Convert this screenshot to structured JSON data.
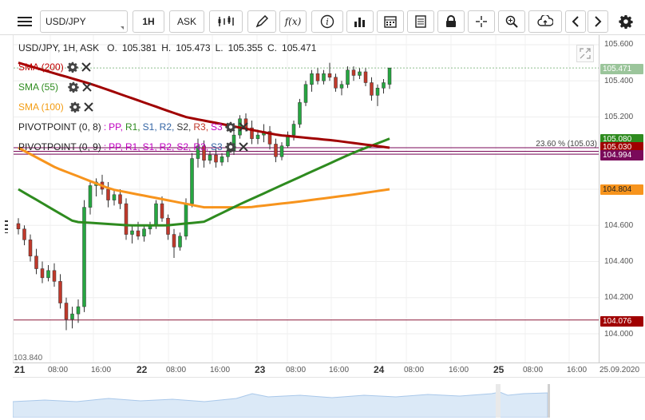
{
  "toolbar": {
    "symbol": "USD/JPY",
    "timeframe": "1H",
    "price_type": "ASK",
    "fx_label": "f(x)"
  },
  "ohlc_line": {
    "symbol_info": "USD/JPY, 1H, ASK",
    "open_label": "O.",
    "open": "105.381",
    "high_label": "H.",
    "high": "105.473",
    "low_label": "L.",
    "low": "105.355",
    "close_label": "C.",
    "close": "105.471"
  },
  "indicators": [
    {
      "label": "SMA (200)",
      "color": "#c00000"
    },
    {
      "label": "SMA (55)",
      "color": "#2e8b1f"
    },
    {
      "label": "SMA (100)",
      "color": "#f39c12"
    }
  ],
  "pivot1": {
    "name": "PIVOTPOINT (0, 8)",
    "sep": " : ",
    "pp": "PP,",
    "r1": "R1,",
    "s1": "S1,",
    "r2": "R2,",
    "s2": "S2,",
    "r3": "R3,",
    "s3": "S3"
  },
  "pivot2": {
    "name": "PIVOTPOINT (0, 9)",
    "sep": " : ",
    "pp": "PP,",
    "r1": "R1,",
    "s1": "S1,",
    "r2": "R2,",
    "s2": "S2,",
    "r3": "R3,",
    "s3": "S3"
  },
  "fib_label": "23.60 % (105.03)",
  "left_price": "103.840",
  "y_ticks": [
    "105.600",
    "105.400",
    "105.200",
    "104.600",
    "104.400",
    "104.200",
    "104.000"
  ],
  "price_labels": {
    "current": "105.471",
    "green": "105.080",
    "fib_hidden": "105.030",
    "purple": "104.994",
    "orange": "104.804",
    "low": "104.076"
  },
  "x_ticks": [
    "21",
    "08:00",
    "16:00",
    "22",
    "08:00",
    "16:00",
    "23",
    "08:00",
    "16:00",
    "24",
    "08:00",
    "16:00",
    "25",
    "08:00",
    "16:00",
    "25.09.2020"
  ],
  "colors": {
    "up": "#26a641",
    "down": "#c0392b",
    "sma200": "#a00000",
    "sma55": "#2e8b1f",
    "sma100": "#f7941d",
    "pivot": "#7a0a5a"
  }
}
